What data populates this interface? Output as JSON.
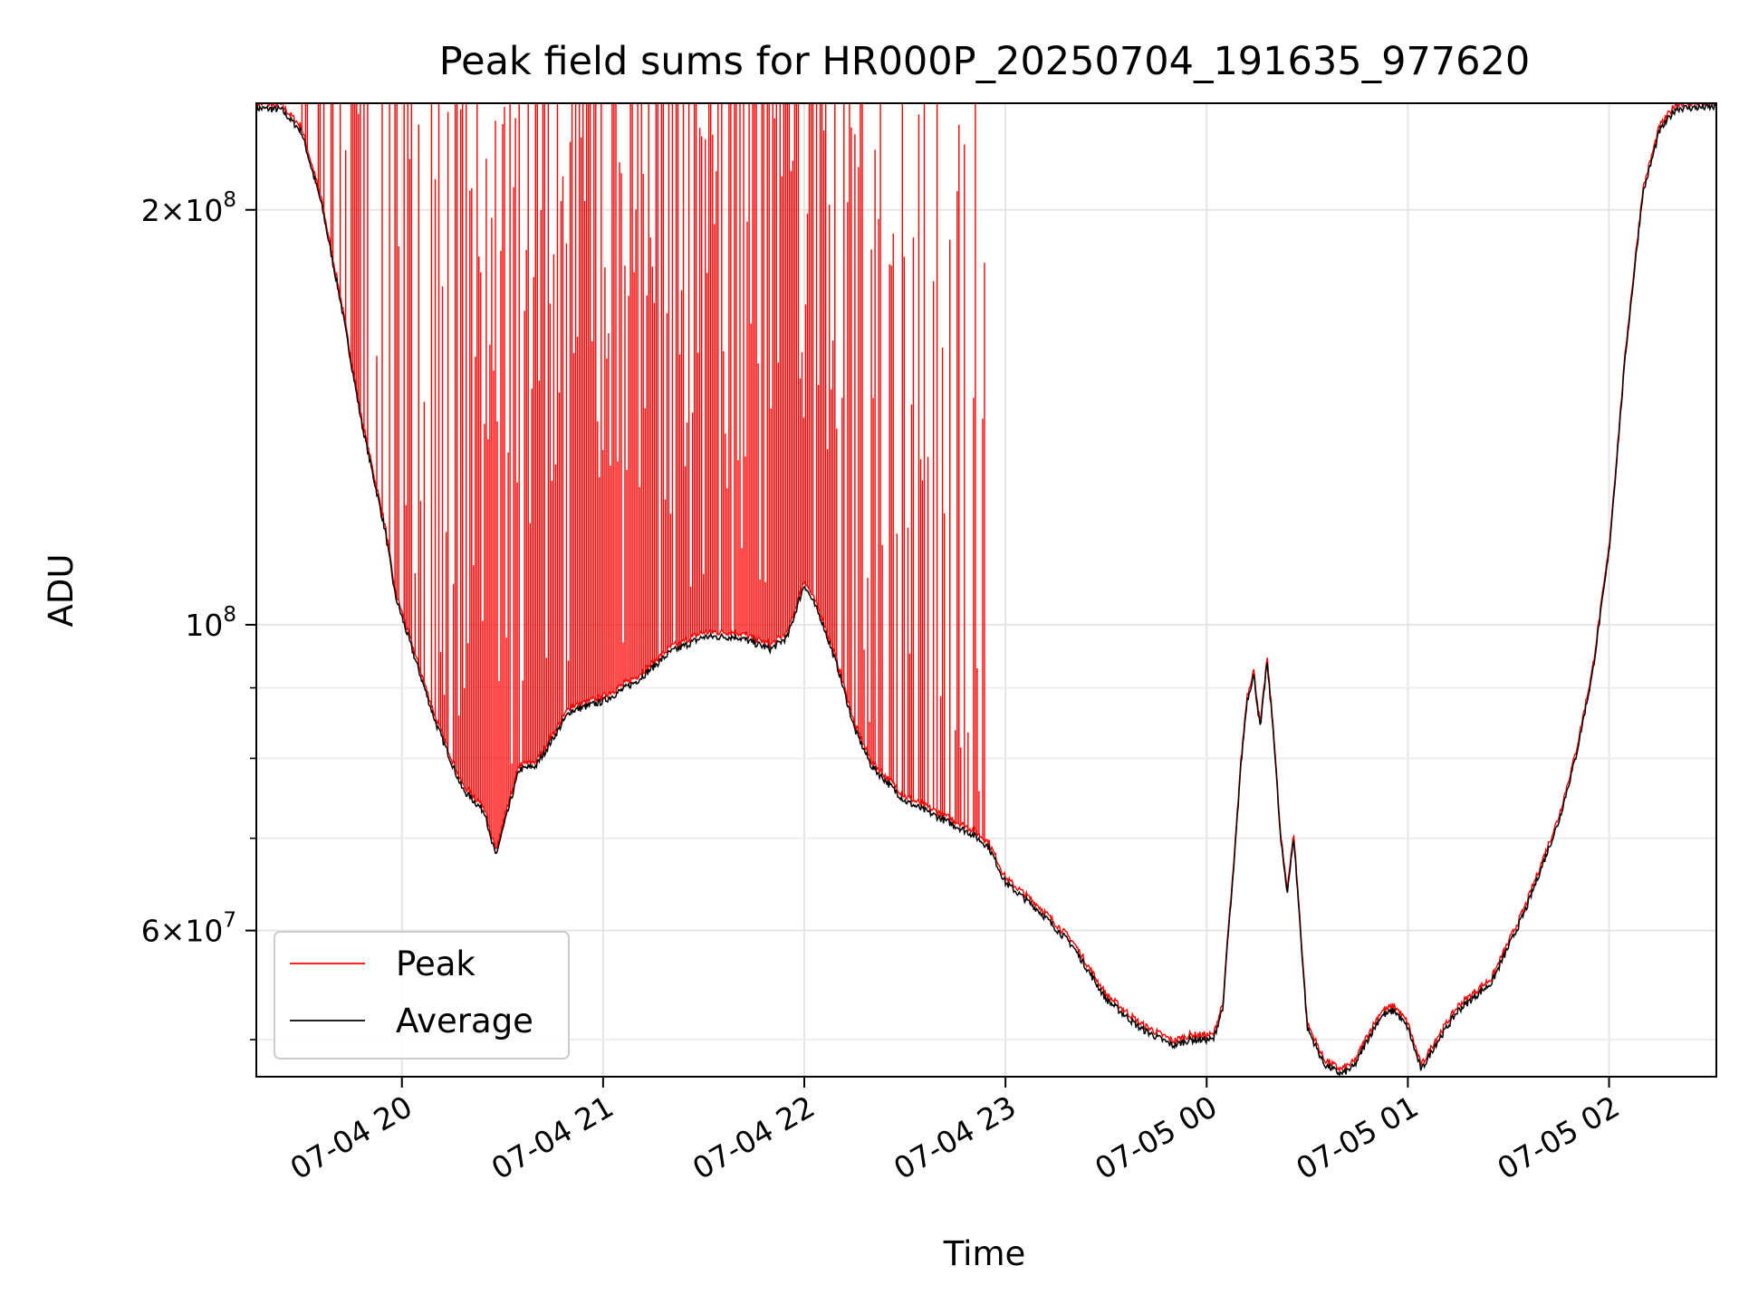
{
  "chart_data": {
    "type": "line",
    "title": "Peak field sums for HR000P_20250704_191635_977620",
    "xlabel": "Time",
    "ylabel": "ADU",
    "yscale": "log",
    "xlim": [
      "2025-07-04 19:16:35",
      "2025-07-05 02:32:00"
    ],
    "ylim": [
      47000000,
      239000000
    ],
    "x_ticks": [
      {
        "value": "2025-07-04 20:00",
        "label": "07-04 20"
      },
      {
        "value": "2025-07-04 21:00",
        "label": "07-04 21"
      },
      {
        "value": "2025-07-04 22:00",
        "label": "07-04 22"
      },
      {
        "value": "2025-07-04 23:00",
        "label": "07-04 23"
      },
      {
        "value": "2025-07-05 00:00",
        "label": "07-05 00"
      },
      {
        "value": "2025-07-05 01:00",
        "label": "07-05 01"
      },
      {
        "value": "2025-07-05 02:00",
        "label": "07-05 02"
      }
    ],
    "y_ticks": [
      {
        "value": 60000000,
        "base": "6×10",
        "exp": "7"
      },
      {
        "value": 100000000,
        "base": "10",
        "exp": "8"
      },
      {
        "value": 200000000,
        "base": "2×10",
        "exp": "8"
      }
    ],
    "y_minor_ticks": [
      50000000,
      70000000,
      80000000,
      90000000
    ],
    "grid": true,
    "legend_position": "lower-left",
    "series": [
      {
        "name": "Average",
        "color": "#000000",
        "x": [
          "2025-07-04 19:16",
          "2025-07-04 19:24",
          "2025-07-04 19:30",
          "2025-07-04 19:36",
          "2025-07-04 19:42",
          "2025-07-04 19:48",
          "2025-07-04 19:55",
          "2025-07-04 19:58",
          "2025-07-04 20:03",
          "2025-07-04 20:10",
          "2025-07-04 20:18",
          "2025-07-04 20:25",
          "2025-07-04 20:26",
          "2025-07-04 20:28",
          "2025-07-04 20:35",
          "2025-07-04 20:40",
          "2025-07-04 20:50",
          "2025-07-04 21:00",
          "2025-07-04 21:10",
          "2025-07-04 21:20",
          "2025-07-04 21:30",
          "2025-07-04 21:40",
          "2025-07-04 21:50",
          "2025-07-04 21:55",
          "2025-07-04 22:00",
          "2025-07-04 22:05",
          "2025-07-04 22:10",
          "2025-07-04 22:15",
          "2025-07-04 22:20",
          "2025-07-04 22:30",
          "2025-07-04 22:40",
          "2025-07-04 22:50",
          "2025-07-04 22:55",
          "2025-07-04 23:00",
          "2025-07-04 23:10",
          "2025-07-04 23:20",
          "2025-07-04 23:30",
          "2025-07-04 23:40",
          "2025-07-04 23:50",
          "2025-07-04 23:55",
          "2025-07-05 00:02",
          "2025-07-05 00:05",
          "2025-07-05 00:06",
          "2025-07-05 00:08",
          "2025-07-05 00:10",
          "2025-07-05 00:12",
          "2025-07-05 00:14",
          "2025-07-05 00:16",
          "2025-07-05 00:18",
          "2025-07-05 00:20",
          "2025-07-05 00:22",
          "2025-07-05 00:24",
          "2025-07-05 00:26",
          "2025-07-05 00:30",
          "2025-07-05 00:35",
          "2025-07-05 00:40",
          "2025-07-05 00:44",
          "2025-07-05 00:48",
          "2025-07-05 00:52",
          "2025-07-05 00:56",
          "2025-07-05 01:00",
          "2025-07-05 01:04",
          "2025-07-05 01:08",
          "2025-07-05 01:15",
          "2025-07-05 01:25",
          "2025-07-05 01:35",
          "2025-07-05 01:45",
          "2025-07-05 01:50",
          "2025-07-05 01:55",
          "2025-07-05 02:00",
          "2025-07-05 02:05",
          "2025-07-05 02:10",
          "2025-07-05 02:15",
          "2025-07-05 02:20",
          "2025-07-05 02:32"
        ],
        "values": [
          237000000,
          236500000,
          228000000,
          202000000,
          170000000,
          140000000,
          117000000,
          105000000,
          96000000,
          85000000,
          76000000,
          73000000,
          70500000,
          68000000,
          78500000,
          79000000,
          86500000,
          88000000,
          91000000,
          95500000,
          98000000,
          98000000,
          96000000,
          98000000,
          107000000,
          101000000,
          93000000,
          84000000,
          79000000,
          74500000,
          72500000,
          70500000,
          69000000,
          65000000,
          62000000,
          58500000,
          53500000,
          51000000,
          49500000,
          50000000,
          50000000,
          53000000,
          58000000,
          66000000,
          78000000,
          88000000,
          92000000,
          84000000,
          94000000,
          83000000,
          70000000,
          64000000,
          70000000,
          51000000,
          48000000,
          47200000,
          47800000,
          50000000,
          52000000,
          52500000,
          51000000,
          47500000,
          49500000,
          52500000,
          55000000,
          62000000,
          72000000,
          80000000,
          92000000,
          113000000,
          158000000,
          205000000,
          228000000,
          237000000,
          237500000
        ]
      },
      {
        "name": "Peak",
        "color": "#ff0000",
        "spike_max": 238000000,
        "spike_region": [
          "2025-07-04 19:30",
          "2025-07-04 22:54"
        ]
      }
    ]
  }
}
